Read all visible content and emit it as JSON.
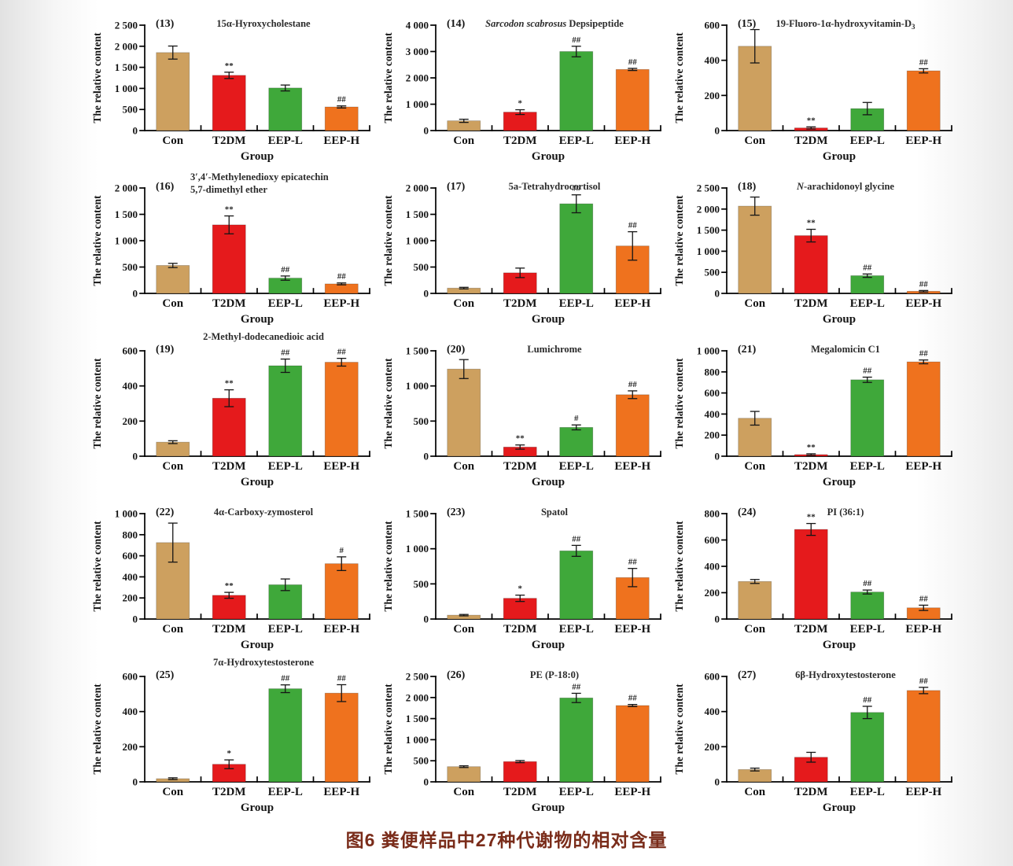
{
  "figure": {
    "caption": "图6  粪便样品中27种代谢物的相对含量",
    "ylabel": "The relative content",
    "xlabel": "Group",
    "categories": [
      "Con",
      "T2DM",
      "EEP-L",
      "EEP-H"
    ],
    "bar_colors": [
      "#CDA05F",
      "#E51A1C",
      "#3FA83A",
      "#EF721E"
    ],
    "caption_color": "#7a2c1a",
    "error_bar_color": "#151515",
    "significance_legend": [
      "*",
      "**",
      "#",
      "##"
    ]
  },
  "chart_data": [
    {
      "type": "bar",
      "panel": "(13)",
      "title": [
        {
          "t": "15α-Hyroxycholestane"
        }
      ],
      "categories": [
        "Con",
        "T2DM",
        "EEP-L",
        "EEP-H"
      ],
      "values": [
        1850,
        1310,
        1010,
        560
      ],
      "errors": [
        155,
        75,
        70,
        25
      ],
      "sig": [
        "",
        "**",
        "",
        "##"
      ],
      "ylim": [
        0,
        2500
      ],
      "ytick": 500,
      "xlabel": "Group",
      "ylabel": "The relative content"
    },
    {
      "type": "bar",
      "panel": "(14)",
      "title": [
        {
          "t": "Sarcodon scabrosus",
          "i": true
        },
        {
          "t": " Depsipeptide"
        }
      ],
      "categories": [
        "Con",
        "T2DM",
        "EEP-L",
        "EEP-H"
      ],
      "values": [
        370,
        700,
        3000,
        2320
      ],
      "errors": [
        60,
        90,
        200,
        40
      ],
      "sig": [
        "",
        "*",
        "##",
        "##"
      ],
      "ylim": [
        0,
        4000
      ],
      "ytick": 1000,
      "xlabel": "Group",
      "ylabel": "The relative content"
    },
    {
      "type": "bar",
      "panel": "(15)",
      "title": [
        {
          "t": "19-Fluoro-1α-hydroxyvitamin-D"
        },
        {
          "t": "3",
          "sub": true
        }
      ],
      "categories": [
        "Con",
        "T2DM",
        "EEP-L",
        "EEP-H"
      ],
      "values": [
        480,
        15,
        125,
        340
      ],
      "errors": [
        95,
        6,
        35,
        12
      ],
      "sig": [
        "",
        "**",
        "",
        "##"
      ],
      "ylim": [
        0,
        600
      ],
      "ytick": 200,
      "xlabel": "Group",
      "ylabel": "The relative content"
    },
    {
      "type": "bar",
      "panel": "(16)",
      "title": [
        {
          "t": "3′,4′-Methylenedioxy epicatechin"
        }
      ],
      "title2": [
        {
          "t": "5,7-dimethyl ether"
        }
      ],
      "categories": [
        "Con",
        "T2DM",
        "EEP-L",
        "EEP-H"
      ],
      "values": [
        530,
        1300,
        290,
        180
      ],
      "errors": [
        40,
        170,
        40,
        18
      ],
      "sig": [
        "",
        "**",
        "##",
        "##"
      ],
      "ylim": [
        0,
        2000
      ],
      "ytick": 500,
      "xlabel": "Group",
      "ylabel": "The relative content"
    },
    {
      "type": "bar",
      "panel": "(17)",
      "title": [
        {
          "t": "5a-Tetrahydrocortisol"
        }
      ],
      "categories": [
        "Con",
        "T2DM",
        "EEP-L",
        "EEP-H"
      ],
      "values": [
        100,
        390,
        1700,
        900
      ],
      "errors": [
        15,
        90,
        170,
        270
      ],
      "sig": [
        "",
        "",
        "##",
        "##"
      ],
      "ylim": [
        0,
        2000
      ],
      "ytick": 500,
      "xlabel": "Group",
      "ylabel": "The relative content"
    },
    {
      "type": "bar",
      "panel": "(18)",
      "title": [
        {
          "t": "N",
          "i": true
        },
        {
          "t": "-arachidonoyl glycine"
        }
      ],
      "categories": [
        "Con",
        "T2DM",
        "EEP-L",
        "EEP-H"
      ],
      "values": [
        2070,
        1370,
        420,
        50
      ],
      "errors": [
        215,
        150,
        40,
        18
      ],
      "sig": [
        "",
        "**",
        "##",
        "##"
      ],
      "ylim": [
        0,
        2500
      ],
      "ytick": 500,
      "xlabel": "Group",
      "ylabel": "The relative content"
    },
    {
      "type": "bar",
      "panel": "(19)",
      "title": [
        {
          "t": "2-Methyl-dodecanedioic acid"
        }
      ],
      "title_above": true,
      "categories": [
        "Con",
        "T2DM",
        "EEP-L",
        "EEP-H"
      ],
      "values": [
        80,
        330,
        515,
        535
      ],
      "errors": [
        8,
        48,
        38,
        22
      ],
      "sig": [
        "",
        "**",
        "##",
        "##"
      ],
      "ylim": [
        0,
        600
      ],
      "ytick": 200,
      "xlabel": "Group",
      "ylabel": "The relative content"
    },
    {
      "type": "bar",
      "panel": "(20)",
      "title": [
        {
          "t": "Lumichrome"
        }
      ],
      "categories": [
        "Con",
        "T2DM",
        "EEP-L",
        "EEP-H"
      ],
      "values": [
        1240,
        130,
        410,
        875
      ],
      "errors": [
        135,
        30,
        35,
        55
      ],
      "sig": [
        "",
        "**",
        "#",
        "##"
      ],
      "ylim": [
        0,
        1500
      ],
      "ytick": 500,
      "xlabel": "Group",
      "ylabel": "The relative content"
    },
    {
      "type": "bar",
      "panel": "(21)",
      "title": [
        {
          "t": "Megalomicin C1"
        }
      ],
      "categories": [
        "Con",
        "T2DM",
        "EEP-L",
        "EEP-H"
      ],
      "values": [
        360,
        15,
        725,
        895
      ],
      "errors": [
        65,
        8,
        25,
        18
      ],
      "sig": [
        "",
        "**",
        "##",
        "##"
      ],
      "ylim": [
        0,
        1000
      ],
      "ytick": 200,
      "xlabel": "Group",
      "ylabel": "The relative content"
    },
    {
      "type": "bar",
      "panel": "(22)",
      "title": [
        {
          "t": "4α-Carboxy-zymosterol"
        }
      ],
      "categories": [
        "Con",
        "T2DM",
        "EEP-L",
        "EEP-H"
      ],
      "values": [
        725,
        225,
        325,
        525
      ],
      "errors": [
        185,
        28,
        55,
        65
      ],
      "sig": [
        "",
        "**",
        "",
        "#"
      ],
      "ylim": [
        0,
        1000
      ],
      "ytick": 200,
      "xlabel": "Group",
      "ylabel": "The relative content"
    },
    {
      "type": "bar",
      "panel": "(23)",
      "title": [
        {
          "t": "Spatol"
        }
      ],
      "categories": [
        "Con",
        "T2DM",
        "EEP-L",
        "EEP-H"
      ],
      "values": [
        55,
        295,
        970,
        590
      ],
      "errors": [
        10,
        45,
        78,
        130
      ],
      "sig": [
        "",
        "*",
        "##",
        "##"
      ],
      "ylim": [
        0,
        1500
      ],
      "ytick": 500,
      "xlabel": "Group",
      "ylabel": "The relative content"
    },
    {
      "type": "bar",
      "panel": "(24)",
      "title": [
        {
          "t": "PI (36:1)"
        }
      ],
      "categories": [
        "Con",
        "T2DM",
        "EEP-L",
        "EEP-H"
      ],
      "values": [
        285,
        680,
        205,
        85
      ],
      "errors": [
        15,
        45,
        15,
        20
      ],
      "sig": [
        "",
        "**",
        "##",
        "##"
      ],
      "ylim": [
        0,
        800
      ],
      "ytick": 200,
      "xlabel": "Group",
      "ylabel": "The relative content"
    },
    {
      "type": "bar",
      "panel": "(25)",
      "title": [
        {
          "t": "7α-Hydroxytestosterone"
        }
      ],
      "title_above": true,
      "categories": [
        "Con",
        "T2DM",
        "EEP-L",
        "EEP-H"
      ],
      "values": [
        18,
        100,
        530,
        505
      ],
      "errors": [
        5,
        25,
        22,
        48
      ],
      "sig": [
        "",
        "*",
        "##",
        "##"
      ],
      "ylim": [
        0,
        600
      ],
      "ytick": 200,
      "xlabel": "Group",
      "ylabel": "The relative content"
    },
    {
      "type": "bar",
      "panel": "(26)",
      "title": [
        {
          "t": "PE (P-18:0)"
        }
      ],
      "categories": [
        "Con",
        "T2DM",
        "EEP-L",
        "EEP-H"
      ],
      "values": [
        360,
        480,
        1990,
        1810
      ],
      "errors": [
        20,
        25,
        110,
        25
      ],
      "sig": [
        "",
        "",
        "##",
        "##"
      ],
      "ylim": [
        0,
        2500
      ],
      "ytick": 500,
      "xlabel": "Group",
      "ylabel": "The relative content"
    },
    {
      "type": "bar",
      "panel": "(27)",
      "title": [
        {
          "t": "6β-Hydroxytestosterone"
        }
      ],
      "categories": [
        "Con",
        "T2DM",
        "EEP-L",
        "EEP-H"
      ],
      "values": [
        70,
        140,
        395,
        520
      ],
      "errors": [
        8,
        28,
        35,
        18
      ],
      "sig": [
        "",
        "",
        "##",
        "##"
      ],
      "ylim": [
        0,
        600
      ],
      "ytick": 200,
      "xlabel": "Group",
      "ylabel": "The relative content"
    }
  ]
}
